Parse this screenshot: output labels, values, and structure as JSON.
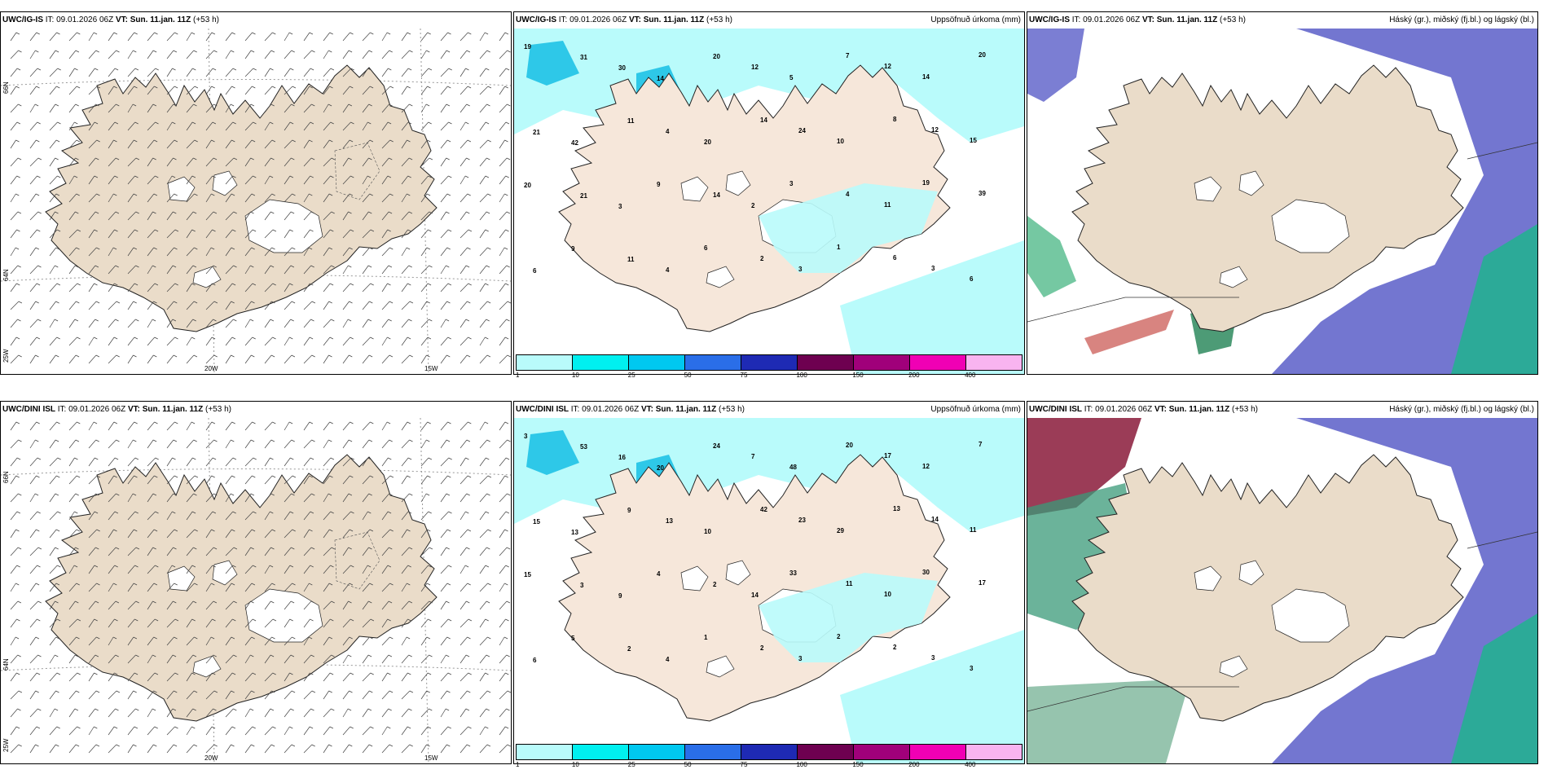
{
  "panels": [
    {
      "id": "p1",
      "model": "UWC/IG-IS",
      "it_label": "IT:",
      "it_value": "09.01.2026 06Z",
      "vt_label": "VT:",
      "vt_value": "Sun. 11.jan. 11Z",
      "lead": "(+53 h)",
      "right_title": "",
      "type": "wind"
    },
    {
      "id": "p2",
      "model": "UWC/IG-IS",
      "it_label": "IT:",
      "it_value": "09.01.2026 06Z",
      "vt_label": "VT:",
      "vt_value": "Sun. 11.jan. 11Z",
      "lead": "(+53 h)",
      "right_title": "Uppsöfnuð úrkoma (mm)",
      "type": "precip"
    },
    {
      "id": "p3",
      "model": "UWC/IG-IS",
      "it_label": "IT:",
      "it_value": "09.01.2026 06Z",
      "vt_label": "VT:",
      "vt_value": "Sun. 11.jan. 11Z",
      "lead": "(+53 h)",
      "right_title": "Háský (gr.), miðský (fj.bl.) og lágský (bl.)",
      "type": "cloud"
    },
    {
      "id": "p4",
      "model": "UWC/DINI ISL",
      "it_label": "IT:",
      "it_value": "09.01.2026 06Z",
      "vt_label": "VT:",
      "vt_value": "Sun. 11.jan. 11Z",
      "lead": "(+53 h)",
      "right_title": "",
      "type": "wind"
    },
    {
      "id": "p5",
      "model": "UWC/DINI ISL",
      "it_label": "IT:",
      "it_value": "09.01.2026 06Z",
      "vt_label": "VT:",
      "vt_value": "Sun. 11.jan. 11Z",
      "lead": "(+53 h)",
      "right_title": "Uppsöfnuð úrkoma (mm)",
      "type": "precip"
    },
    {
      "id": "p6",
      "model": "UWC/DINI ISL",
      "it_label": "IT:",
      "it_value": "09.01.2026 06Z",
      "vt_label": "VT:",
      "vt_value": "Sun. 11.jan. 11Z",
      "lead": "(+53 h)",
      "right_title": "Háský (gr.), miðský (fj.bl.) og lágský (bl.)",
      "type": "cloud"
    }
  ],
  "axis_labels": {
    "lon_20w": "20W",
    "lon_15w": "15W",
    "lat_66n": "66N",
    "lat_64n": "64N",
    "lat_25w": "25W"
  },
  "colorbar": {
    "ticks": [
      "1",
      "10",
      "25",
      "50",
      "75",
      "100",
      "150",
      "200",
      "400"
    ],
    "colors": [
      "#b9fbfb",
      "#00f0f0",
      "#00c8f0",
      "#2a6ee8",
      "#1e2ab4",
      "#6e0050",
      "#a0007a",
      "#f000b4",
      "#f8b4f0"
    ]
  },
  "precip_top": [
    {
      "v": "19"
    },
    {
      "v": "31"
    },
    {
      "v": "30"
    },
    {
      "v": "14"
    },
    {
      "v": "20"
    },
    {
      "v": "12"
    },
    {
      "v": "5"
    },
    {
      "v": "7"
    },
    {
      "v": "12"
    },
    {
      "v": "14"
    },
    {
      "v": "20"
    },
    {
      "v": "21"
    },
    {
      "v": "42"
    },
    {
      "v": "11"
    },
    {
      "v": "4"
    },
    {
      "v": "20"
    },
    {
      "v": "14"
    },
    {
      "v": "24"
    },
    {
      "v": "10"
    },
    {
      "v": "8"
    },
    {
      "v": "12"
    },
    {
      "v": "15"
    },
    {
      "v": "20"
    },
    {
      "v": "21"
    },
    {
      "v": "3"
    },
    {
      "v": "9"
    },
    {
      "v": "14"
    },
    {
      "v": "2"
    },
    {
      "v": "3"
    },
    {
      "v": "4"
    },
    {
      "v": "11"
    },
    {
      "v": "19"
    },
    {
      "v": "39"
    },
    {
      "v": "6"
    },
    {
      "v": "9"
    },
    {
      "v": "11"
    },
    {
      "v": "4"
    },
    {
      "v": "6"
    },
    {
      "v": "2"
    },
    {
      "v": "3"
    },
    {
      "v": "1"
    },
    {
      "v": "6"
    },
    {
      "v": "3"
    },
    {
      "v": "6"
    }
  ],
  "precip_bottom": [
    {
      "v": "3"
    },
    {
      "v": "53"
    },
    {
      "v": "16"
    },
    {
      "v": "20"
    },
    {
      "v": "24"
    },
    {
      "v": "7"
    },
    {
      "v": "48"
    },
    {
      "v": "20"
    },
    {
      "v": "17"
    },
    {
      "v": "12"
    },
    {
      "v": "7"
    },
    {
      "v": "15"
    },
    {
      "v": "13"
    },
    {
      "v": "9"
    },
    {
      "v": "13"
    },
    {
      "v": "10"
    },
    {
      "v": "42"
    },
    {
      "v": "23"
    },
    {
      "v": "29"
    },
    {
      "v": "13"
    },
    {
      "v": "14"
    },
    {
      "v": "11"
    },
    {
      "v": "15"
    },
    {
      "v": "3"
    },
    {
      "v": "9"
    },
    {
      "v": "4"
    },
    {
      "v": "2"
    },
    {
      "v": "14"
    },
    {
      "v": "33"
    },
    {
      "v": "11"
    },
    {
      "v": "10"
    },
    {
      "v": "30"
    },
    {
      "v": "17"
    },
    {
      "v": "6"
    },
    {
      "v": "5"
    },
    {
      "v": "2"
    },
    {
      "v": "4"
    },
    {
      "v": "1"
    },
    {
      "v": "2"
    },
    {
      "v": "3"
    },
    {
      "v": "2"
    },
    {
      "v": "2"
    },
    {
      "v": "3"
    },
    {
      "v": "3"
    }
  ]
}
